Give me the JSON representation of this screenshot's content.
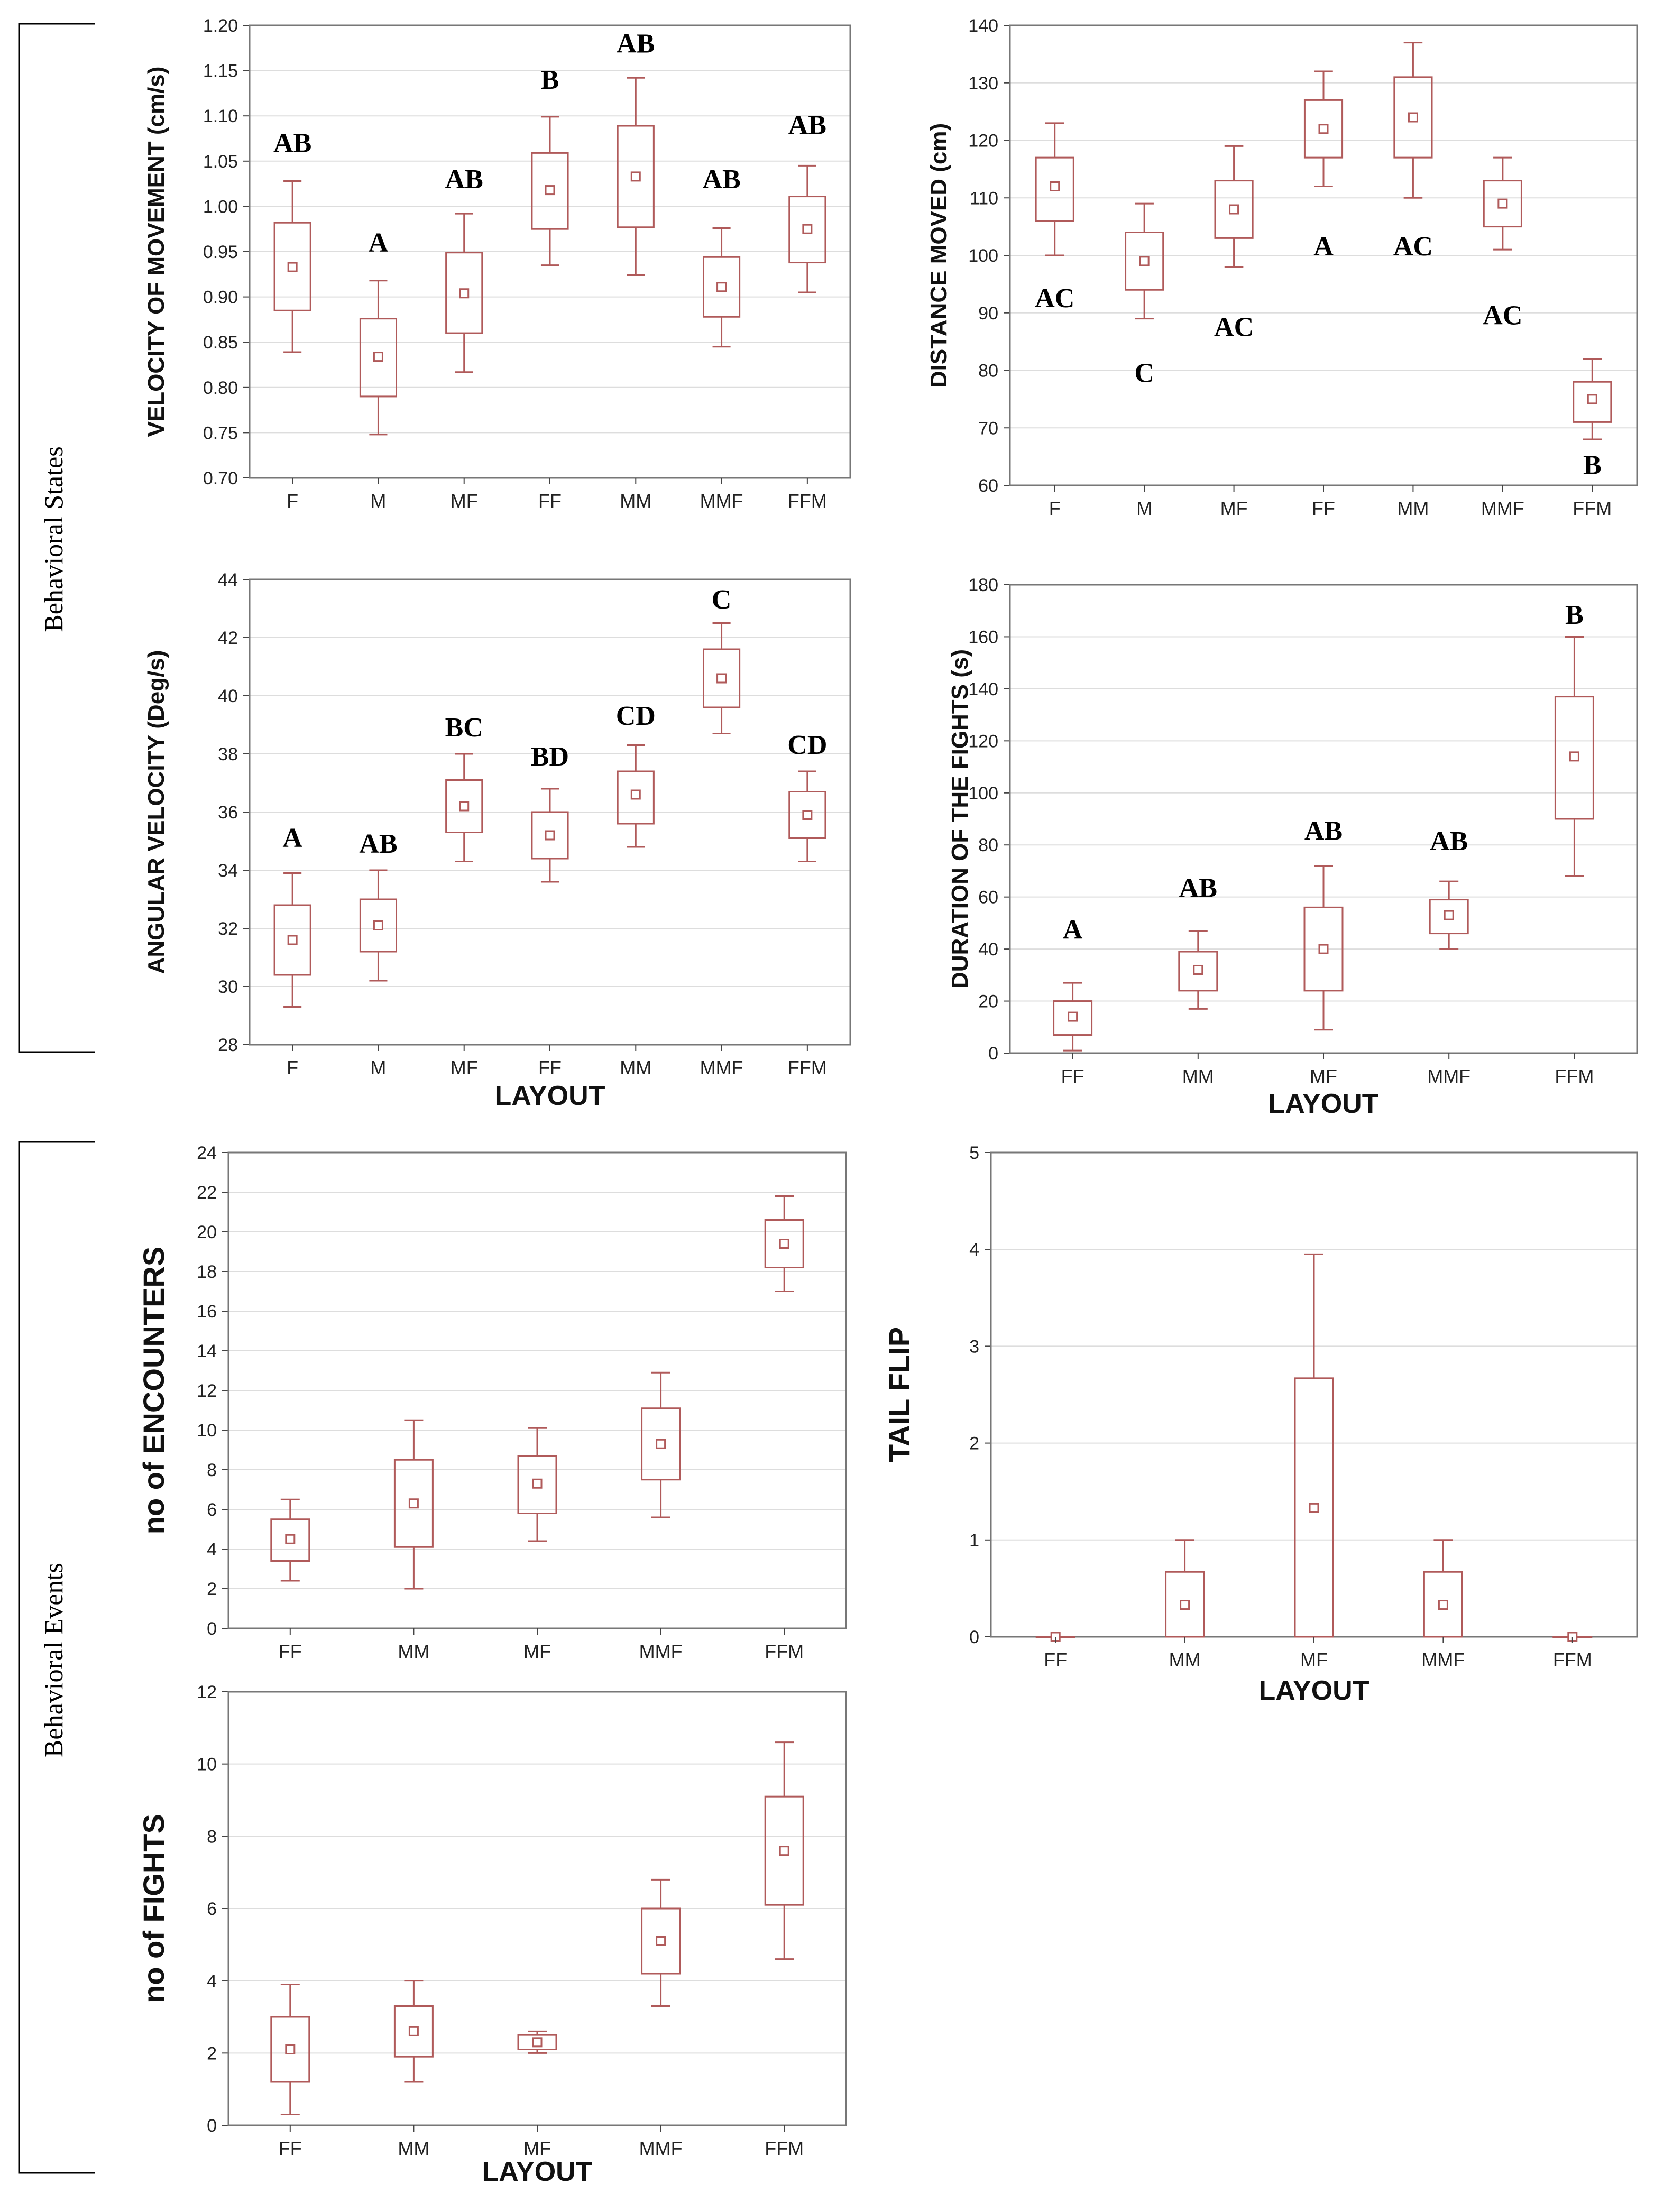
{
  "figure": {
    "groups": [
      {
        "label": "Behavioral States"
      },
      {
        "label": "Behavioral Events"
      }
    ],
    "box_color": "#b05a5a",
    "grid_color": "#dddddd"
  },
  "chart_data": [
    {
      "id": "velocity",
      "type": "box",
      "title": "",
      "ylabel": "VELOCITY OF MOVEMENT (cm/s)",
      "xlabel": "",
      "ylim": [
        0.7,
        1.2
      ],
      "yticks": [
        0.7,
        0.75,
        0.8,
        0.85,
        0.9,
        0.95,
        1.0,
        1.05,
        1.1,
        1.15,
        1.2
      ],
      "tick_decimals": 2,
      "categories": [
        "F",
        "M",
        "MF",
        "FF",
        "MM",
        "MMF",
        "FFM"
      ],
      "mean": [
        0.933,
        0.834,
        0.904,
        1.018,
        1.033,
        0.911,
        0.975
      ],
      "box_low": [
        0.885,
        0.79,
        0.86,
        0.975,
        0.977,
        0.878,
        0.938
      ],
      "box_high": [
        0.982,
        0.876,
        0.949,
        1.059,
        1.089,
        0.944,
        1.011
      ],
      "whisker_low": [
        0.839,
        0.748,
        0.817,
        0.935,
        0.924,
        0.845,
        0.905
      ],
      "whisker_high": [
        1.028,
        0.918,
        0.992,
        1.099,
        1.142,
        0.976,
        1.045
      ],
      "letters": [
        "AB",
        "A",
        "AB",
        "B",
        "AB",
        "AB",
        "AB"
      ],
      "letter_y": [
        1.06,
        0.95,
        1.02,
        1.13,
        1.17,
        1.02,
        1.08
      ]
    },
    {
      "id": "distance",
      "type": "box",
      "title": "",
      "ylabel": "DISTANCE MOVED (cm)",
      "xlabel": "",
      "ylim": [
        60,
        140
      ],
      "yticks": [
        60,
        70,
        80,
        90,
        100,
        110,
        120,
        130,
        140
      ],
      "tick_decimals": 0,
      "categories": [
        "F",
        "M",
        "MF",
        "FF",
        "MM",
        "MMF",
        "FFM"
      ],
      "mean": [
        112,
        99,
        108,
        122,
        124,
        109,
        75
      ],
      "box_low": [
        106,
        94,
        103,
        117,
        117,
        105,
        71
      ],
      "box_high": [
        117,
        104,
        113,
        127,
        131,
        113,
        78
      ],
      "whisker_low": [
        100,
        89,
        98,
        112,
        110,
        101,
        68
      ],
      "whisker_high": [
        123,
        109,
        119,
        132,
        137,
        117,
        82
      ],
      "letters": [
        "AC",
        "C",
        "AC",
        "A",
        "AC",
        "AC",
        "B"
      ],
      "letter_y": [
        91,
        78,
        86,
        100,
        100,
        88,
        62
      ]
    },
    {
      "id": "angular",
      "type": "box",
      "title": "",
      "ylabel": "ANGULAR VELOCITY (Deg/s)",
      "xlabel": "LAYOUT",
      "ylim": [
        28,
        44
      ],
      "yticks": [
        28,
        30,
        32,
        34,
        36,
        38,
        40,
        42,
        44
      ],
      "tick_decimals": 0,
      "categories": [
        "F",
        "M",
        "MF",
        "FF",
        "MM",
        "MMF",
        "FFM"
      ],
      "mean": [
        31.6,
        32.1,
        36.2,
        35.2,
        36.6,
        40.6,
        35.9
      ],
      "box_low": [
        30.4,
        31.2,
        35.3,
        34.4,
        35.6,
        39.6,
        35.1
      ],
      "box_high": [
        32.8,
        33.0,
        37.1,
        36.0,
        37.4,
        41.6,
        36.7
      ],
      "whisker_low": [
        29.3,
        30.2,
        34.3,
        33.6,
        34.8,
        38.7,
        34.3
      ],
      "whisker_high": [
        33.9,
        34.0,
        38.0,
        36.8,
        38.3,
        42.5,
        37.4
      ],
      "letters": [
        "A",
        "AB",
        "BC",
        "BD",
        "CD",
        "C",
        "CD"
      ],
      "letter_y": [
        34.8,
        34.6,
        38.6,
        37.6,
        39.0,
        43.0,
        38.0
      ]
    },
    {
      "id": "fights_duration",
      "type": "box",
      "title": "",
      "ylabel": "DURATION OF THE FIGHTS (s)",
      "xlabel": "LAYOUT",
      "ylim": [
        0,
        180
      ],
      "yticks": [
        0,
        20,
        40,
        60,
        80,
        100,
        120,
        140,
        160,
        180
      ],
      "tick_decimals": 0,
      "categories": [
        "FF",
        "MM",
        "MF",
        "MMF",
        "FFM"
      ],
      "mean": [
        14,
        32,
        40,
        53,
        114
      ],
      "box_low": [
        7,
        24,
        24,
        46,
        90
      ],
      "box_high": [
        20,
        39,
        56,
        59,
        137
      ],
      "whisker_low": [
        1,
        17,
        9,
        40,
        68
      ],
      "whisker_high": [
        27,
        47,
        72,
        66,
        160
      ],
      "letters": [
        "A",
        "AB",
        "AB",
        "AB",
        "B"
      ],
      "letter_y": [
        44,
        60,
        82,
        78,
        165
      ]
    },
    {
      "id": "encounters",
      "type": "box",
      "title": "",
      "ylabel": "no of ENCOUNTERS",
      "xlabel": "",
      "ylim": [
        0,
        24
      ],
      "yticks": [
        0,
        2,
        4,
        6,
        8,
        10,
        12,
        14,
        16,
        18,
        20,
        22,
        24
      ],
      "tick_decimals": 0,
      "categories": [
        "FF",
        "MM",
        "MF",
        "MMF",
        "FFM"
      ],
      "mean": [
        4.5,
        6.3,
        7.3,
        9.3,
        19.4
      ],
      "box_low": [
        3.4,
        4.1,
        5.8,
        7.5,
        18.2
      ],
      "box_high": [
        5.5,
        8.5,
        8.7,
        11.1,
        20.6
      ],
      "whisker_low": [
        2.4,
        2.0,
        4.4,
        5.6,
        17.0
      ],
      "whisker_high": [
        6.5,
        10.5,
        10.1,
        12.9,
        21.8
      ],
      "letters": [],
      "letter_y": []
    },
    {
      "id": "tail_flip",
      "type": "box",
      "title": "",
      "ylabel": "TAIL FLIP",
      "xlabel": "LAYOUT",
      "ylim": [
        0,
        5
      ],
      "yticks": [
        0,
        1,
        2,
        3,
        4,
        5
      ],
      "tick_decimals": 0,
      "categories": [
        "FF",
        "MM",
        "MF",
        "MMF",
        "FFM"
      ],
      "mean": [
        0,
        0.33,
        1.33,
        0.33,
        0
      ],
      "box_low": [
        0,
        0,
        0,
        0,
        0
      ],
      "box_high": [
        0,
        0.67,
        2.67,
        0.67,
        0
      ],
      "whisker_low": [
        0,
        0,
        0,
        0,
        0
      ],
      "whisker_high": [
        0,
        1.0,
        3.95,
        1.0,
        0
      ],
      "letters": [],
      "letter_y": []
    },
    {
      "id": "fights_count",
      "type": "box",
      "title": "",
      "ylabel": "no of FIGHTS",
      "xlabel": "LAYOUT",
      "ylim": [
        0,
        12
      ],
      "yticks": [
        0,
        2,
        4,
        6,
        8,
        10,
        12
      ],
      "tick_decimals": 0,
      "categories": [
        "FF",
        "MM",
        "MF",
        "MMF",
        "FFM"
      ],
      "mean": [
        2.1,
        2.6,
        2.3,
        5.1,
        7.6
      ],
      "box_low": [
        1.2,
        1.9,
        2.1,
        4.2,
        6.1
      ],
      "box_high": [
        3.0,
        3.3,
        2.5,
        6.0,
        9.1
      ],
      "whisker_low": [
        0.3,
        1.2,
        2.0,
        3.3,
        4.6
      ],
      "whisker_high": [
        3.9,
        4.0,
        2.6,
        6.8,
        10.6
      ],
      "letters": [],
      "letter_y": []
    }
  ]
}
